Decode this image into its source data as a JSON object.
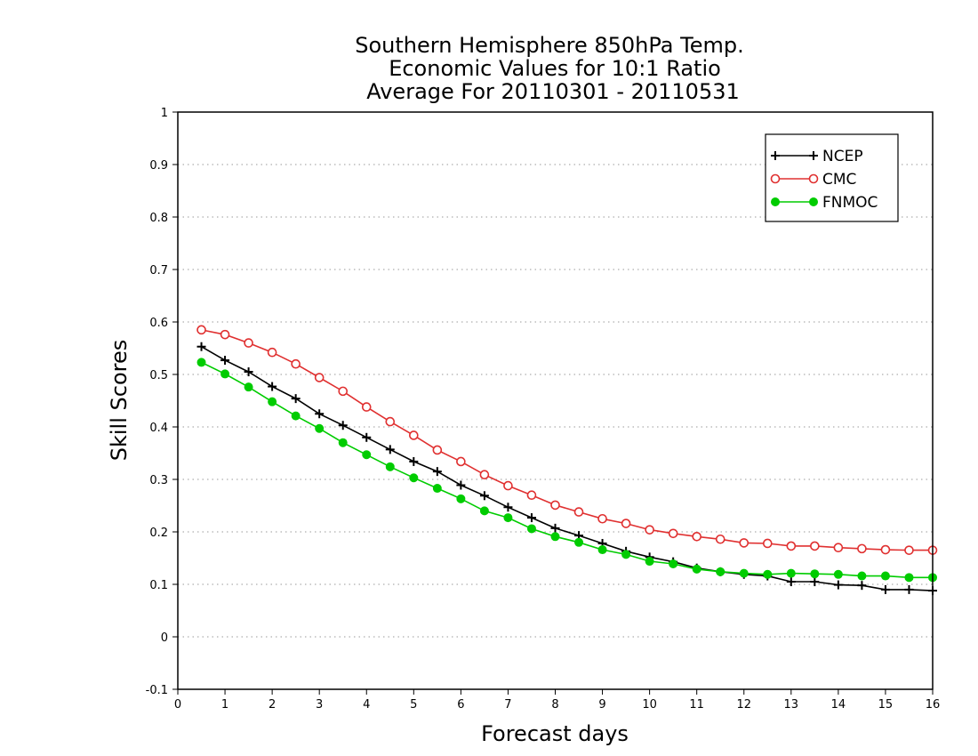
{
  "chart_data": {
    "type": "line",
    "title": [
      "Southern Hemisphere 850hPa Temp.",
      "Economic Values for 10:1 Ratio",
      "Average For 20110301 - 20110531"
    ],
    "xlabel": "Forecast days",
    "ylabel": "Skill Scores",
    "xlim": [
      0,
      16
    ],
    "ylim": [
      -0.1,
      1
    ],
    "xticks": [
      0,
      1,
      2,
      3,
      4,
      5,
      6,
      7,
      8,
      9,
      10,
      11,
      12,
      13,
      14,
      15,
      16
    ],
    "yticks": [
      -0.1,
      0,
      0.1,
      0.2,
      0.3,
      0.4,
      0.5,
      0.6,
      0.7,
      0.8,
      0.9,
      1
    ],
    "ytick_labels": [
      "-0.1",
      "0",
      "0.1",
      "0.2",
      "0.3",
      "0.4",
      "0.5",
      "0.6",
      "0.7",
      "0.8",
      "0.9",
      "1"
    ],
    "grid": "horizontal-dotted",
    "legend_position": "top-right",
    "x": [
      0.5,
      1,
      1.5,
      2,
      2.5,
      3,
      3.5,
      4,
      4.5,
      5,
      5.5,
      6,
      6.5,
      7,
      7.5,
      8,
      8.5,
      9,
      9.5,
      10,
      10.5,
      11,
      11.5,
      12,
      12.5,
      13,
      13.5,
      14,
      14.5,
      15,
      15.5,
      16
    ],
    "series": [
      {
        "name": "NCEP",
        "color": "#000000",
        "marker": "plus",
        "values": [
          0.553,
          0.527,
          0.505,
          0.477,
          0.454,
          0.425,
          0.403,
          0.38,
          0.357,
          0.334,
          0.315,
          0.289,
          0.269,
          0.247,
          0.227,
          0.207,
          0.193,
          0.178,
          0.163,
          0.152,
          0.143,
          0.131,
          0.124,
          0.119,
          0.116,
          0.105,
          0.105,
          0.099,
          0.098,
          0.09,
          0.09,
          0.088
        ]
      },
      {
        "name": "CMC",
        "color": "#e03030",
        "marker": "open-circle",
        "values": [
          0.585,
          0.576,
          0.56,
          0.542,
          0.52,
          0.494,
          0.468,
          0.438,
          0.41,
          0.384,
          0.356,
          0.334,
          0.309,
          0.288,
          0.27,
          0.251,
          0.238,
          0.225,
          0.216,
          0.204,
          0.197,
          0.191,
          0.186,
          0.179,
          0.178,
          0.173,
          0.173,
          0.17,
          0.168,
          0.166,
          0.165,
          0.165
        ]
      },
      {
        "name": "FNMOC",
        "color": "#00cc00",
        "marker": "filled-circle",
        "values": [
          0.523,
          0.501,
          0.476,
          0.448,
          0.421,
          0.397,
          0.37,
          0.347,
          0.324,
          0.303,
          0.283,
          0.263,
          0.24,
          0.227,
          0.206,
          0.191,
          0.18,
          0.166,
          0.157,
          0.144,
          0.139,
          0.129,
          0.124,
          0.121,
          0.119,
          0.121,
          0.12,
          0.119,
          0.116,
          0.116,
          0.113,
          0.113
        ]
      }
    ]
  }
}
